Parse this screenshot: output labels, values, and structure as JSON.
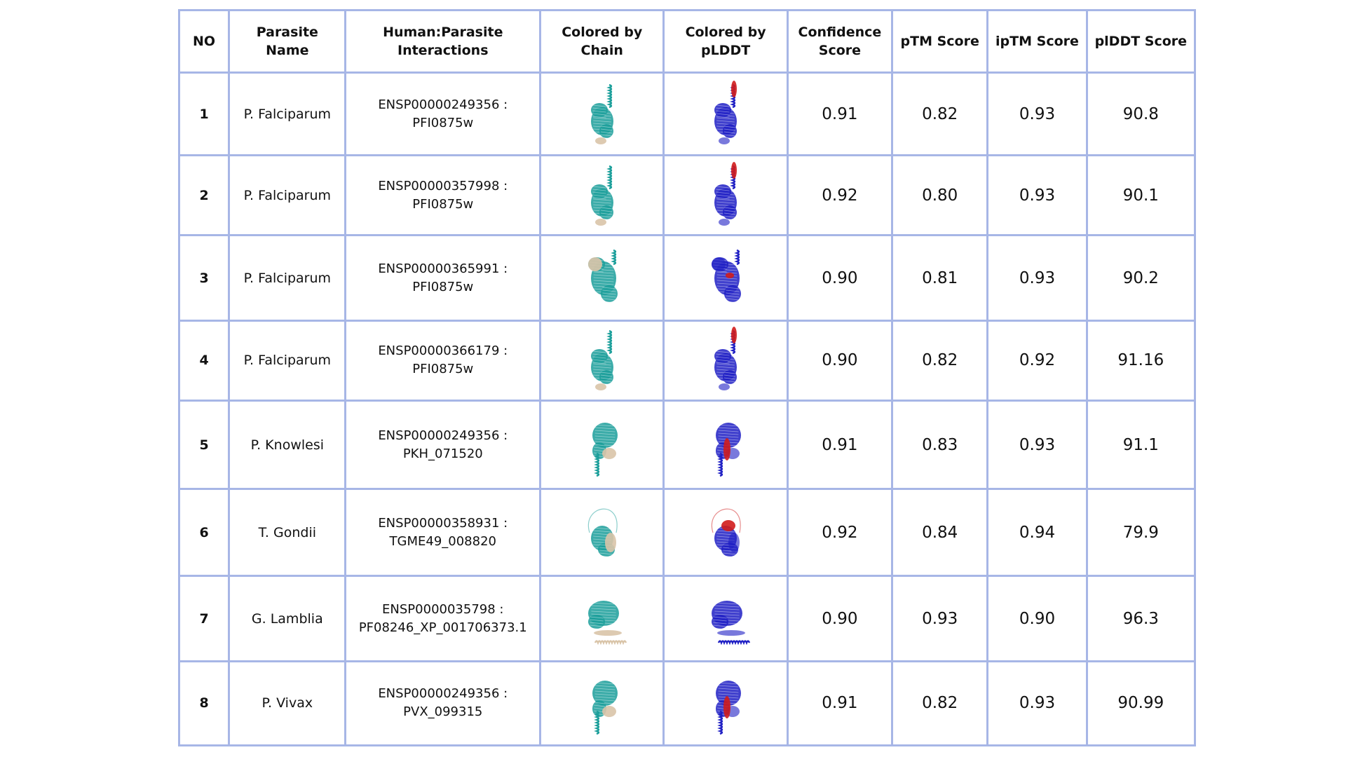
{
  "headers": [
    "NO",
    "Parasite\nName",
    "Human:Parasite\nInteractions",
    "Colored by\nChain",
    "Colored by\npLDDT",
    "Confidence\nScore",
    "pTM Score",
    "ipTM Score",
    "plDDT Score"
  ],
  "rows": [
    {
      "no": "1",
      "parasite": "P. Falciparum",
      "interaction": "ENSP00000249356 :\nPFI0875w",
      "chain_img": "protein-structure-chain-icon",
      "plddt_img": "protein-structure-plddt-icon",
      "confidence": "0.91",
      "ptm": "0.82",
      "iptm": "0.93",
      "plddt": "90.8"
    },
    {
      "no": "2",
      "parasite": "P. Falciparum",
      "interaction": "ENSP00000357998 :\nPFI0875w",
      "chain_img": "protein-structure-chain-icon",
      "plddt_img": "protein-structure-plddt-icon",
      "confidence": "0.92",
      "ptm": "0.80",
      "iptm": "0.93",
      "plddt": "90.1"
    },
    {
      "no": "3",
      "parasite": "P. Falciparum",
      "interaction": "ENSP00000365991 :\nPFI0875w",
      "chain_img": "protein-structure-chain-icon",
      "plddt_img": "protein-structure-plddt-icon",
      "confidence": "0.90",
      "ptm": "0.81",
      "iptm": "0.93",
      "plddt": "90.2"
    },
    {
      "no": "4",
      "parasite": "P. Falciparum",
      "interaction": "ENSP00000366179 :\nPFI0875w",
      "chain_img": "protein-structure-chain-icon",
      "plddt_img": "protein-structure-plddt-icon",
      "confidence": "0.90",
      "ptm": "0.82",
      "iptm": "0.92",
      "plddt": "91.16"
    },
    {
      "no": "5",
      "parasite": "P. Knowlesi",
      "interaction": "ENSP00000249356 :\nPKH_071520",
      "chain_img": "protein-structure-chain-icon",
      "plddt_img": "protein-structure-plddt-icon",
      "confidence": "0.91",
      "ptm": "0.83",
      "iptm": "0.93",
      "plddt": "91.1"
    },
    {
      "no": "6",
      "parasite": "T. Gondii",
      "interaction": "ENSP00000358931 :\nTGME49_008820",
      "chain_img": "protein-structure-chain-icon",
      "plddt_img": "protein-structure-plddt-icon",
      "confidence": "0.92",
      "ptm": "0.84",
      "iptm": "0.94",
      "plddt": "79.9"
    },
    {
      "no": "7",
      "parasite": "G. Lamblia",
      "interaction": "ENSP0000035798 :\nPF08246_XP_001706373.1",
      "chain_img": "protein-structure-chain-icon",
      "plddt_img": "protein-structure-plddt-icon",
      "confidence": "0.90",
      "ptm": "0.93",
      "iptm": "0.90",
      "plddt": "96.3"
    },
    {
      "no": "8",
      "parasite": "P. Vivax",
      "interaction": "ENSP00000249356 :\nPVX_099315",
      "chain_img": "protein-structure-chain-icon",
      "plddt_img": "protein-structure-plddt-icon",
      "confidence": "0.91",
      "ptm": "0.82",
      "iptm": "0.93",
      "plddt": "90.99"
    }
  ],
  "colors": {
    "border": "#a7b6e6",
    "chain_primary": "#1a9e9a",
    "chain_secondary": "#d9c4a8",
    "plddt_high": "#1f1fc4",
    "plddt_low": "#d01c1c"
  }
}
